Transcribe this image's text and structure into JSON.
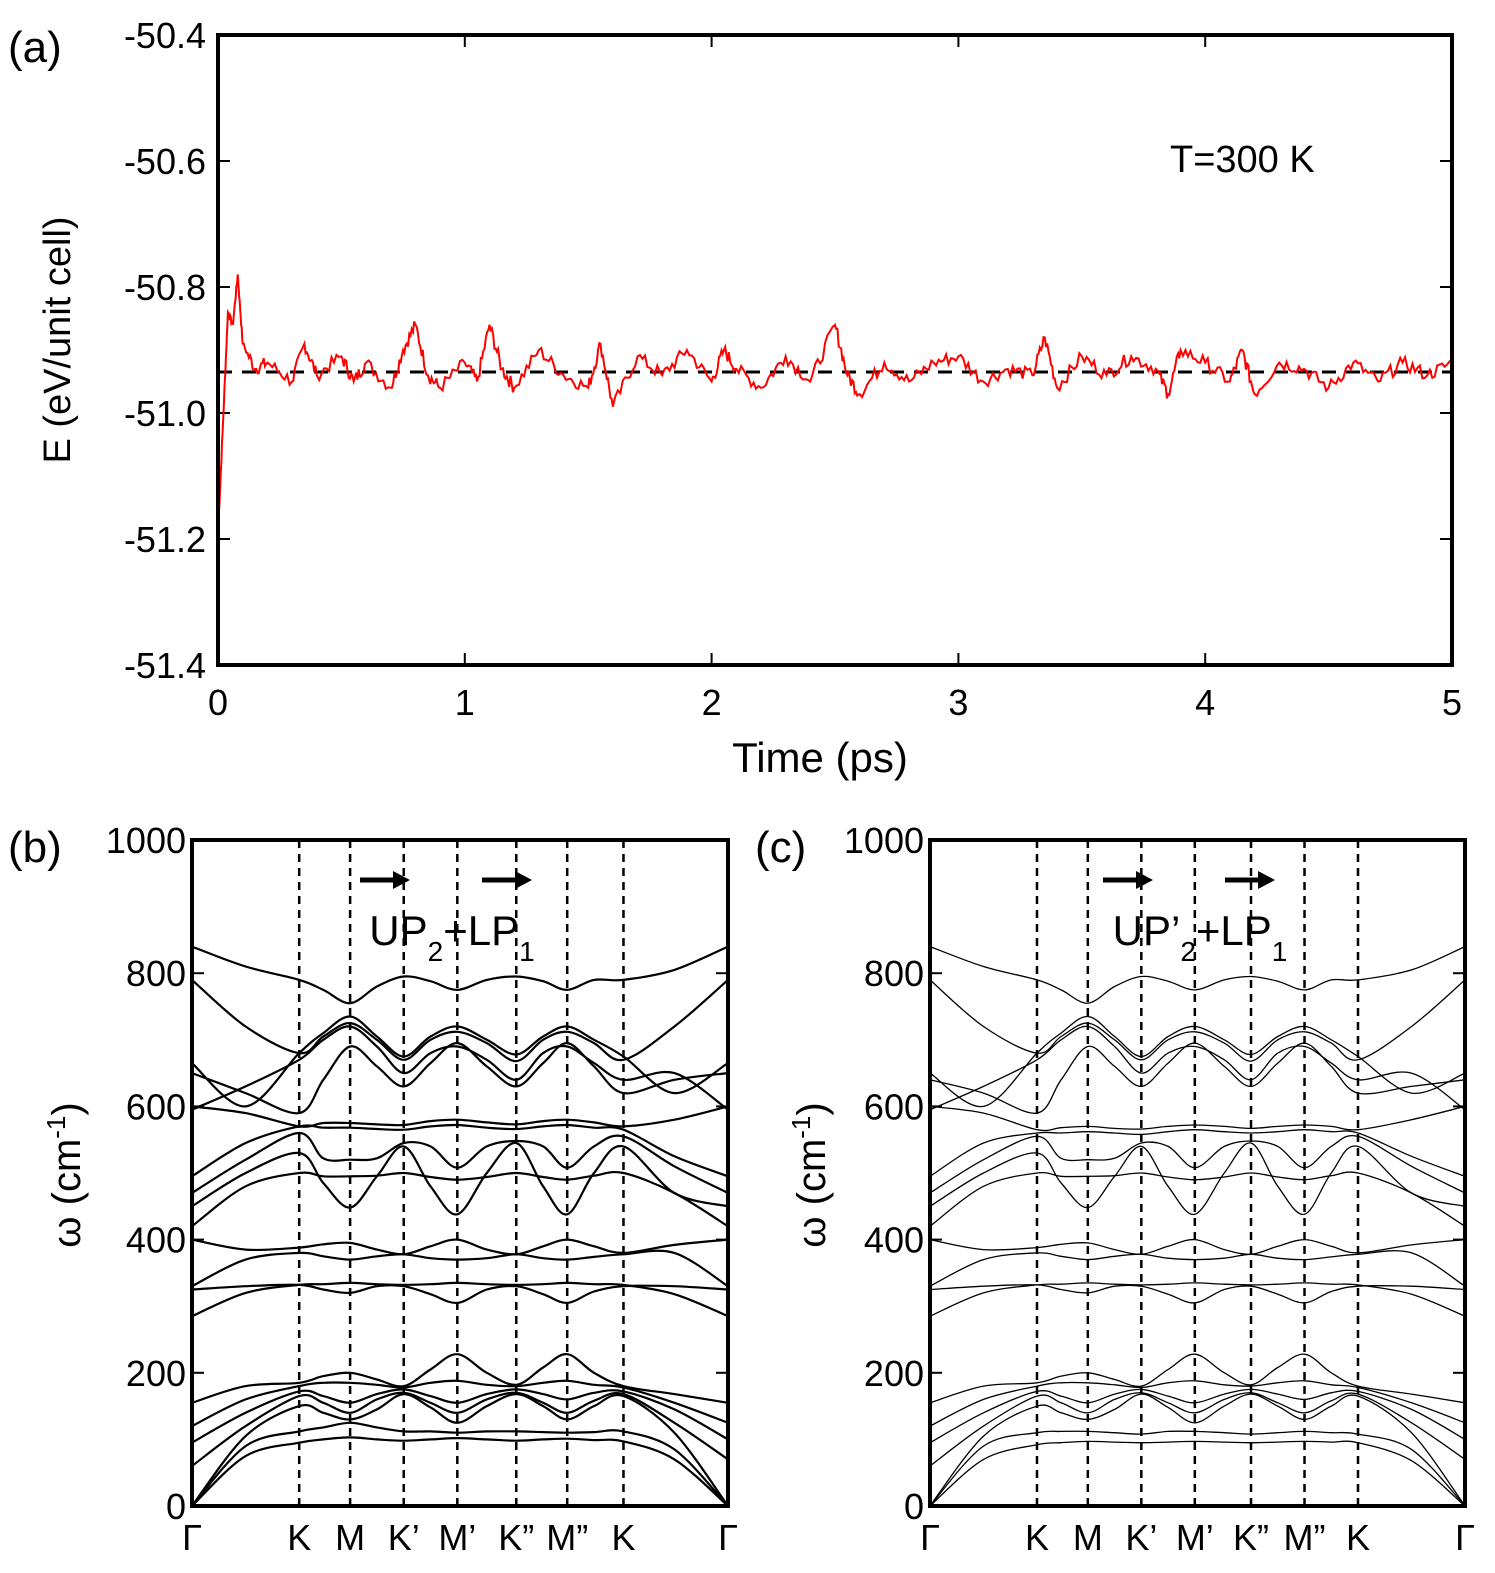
{
  "colors": {
    "md_line": "#ff0000",
    "axis": "#000000",
    "band": "#000000",
    "background": "#ffffff"
  },
  "chart_data": [
    {
      "panel": "(a)",
      "type": "line",
      "xlabel": "Time (ps)",
      "ylabel": "E (eV/unit cell)",
      "xlim": [
        0,
        5
      ],
      "ylim": [
        -51.4,
        -50.4
      ],
      "xticks": [
        0,
        1,
        2,
        3,
        4,
        5
      ],
      "yticks": [
        -50.4,
        -50.6,
        -50.8,
        -51.0,
        -51.2,
        -51.4
      ],
      "xtick_labels": [
        "0",
        "1",
        "2",
        "3",
        "4",
        "5"
      ],
      "ytick_labels": [
        "-50.4",
        "-50.6",
        "-50.8",
        "-51.0",
        "-51.2",
        "-51.4"
      ],
      "annotation": "T=300 K",
      "reference_line": {
        "y": -50.935,
        "style": "dashed"
      },
      "x": [
        0,
        0.02,
        0.04,
        0.06,
        0.08,
        0.1,
        0.15,
        0.2,
        0.3,
        0.35,
        0.4,
        0.5,
        0.55,
        0.6,
        0.7,
        0.75,
        0.8,
        0.85,
        0.9,
        1.0,
        1.05,
        1.1,
        1.15,
        1.2,
        1.3,
        1.4,
        1.5,
        1.55,
        1.6,
        1.7,
        1.8,
        1.9,
        2.0,
        2.05,
        2.1,
        2.2,
        2.3,
        2.4,
        2.5,
        2.55,
        2.6,
        2.7,
        2.8,
        2.9,
        3.0,
        3.1,
        3.2,
        3.3,
        3.35,
        3.4,
        3.5,
        3.6,
        3.7,
        3.8,
        3.85,
        3.9,
        4.0,
        4.1,
        4.15,
        4.2,
        4.3,
        4.4,
        4.5,
        4.6,
        4.7,
        4.8,
        4.9,
        5.0
      ],
      "y": [
        -51.19,
        -51.02,
        -50.84,
        -50.86,
        -50.78,
        -50.89,
        -50.93,
        -50.92,
        -50.95,
        -50.89,
        -50.94,
        -50.91,
        -50.95,
        -50.92,
        -50.96,
        -50.9,
        -50.86,
        -50.94,
        -50.96,
        -50.92,
        -50.95,
        -50.86,
        -50.93,
        -50.96,
        -50.9,
        -50.94,
        -50.96,
        -50.89,
        -50.99,
        -50.91,
        -50.94,
        -50.9,
        -50.95,
        -50.9,
        -50.93,
        -50.96,
        -50.91,
        -50.95,
        -50.86,
        -50.94,
        -50.97,
        -50.92,
        -50.95,
        -50.92,
        -50.91,
        -50.95,
        -50.93,
        -50.94,
        -50.88,
        -50.96,
        -50.91,
        -50.94,
        -50.91,
        -50.93,
        -50.97,
        -50.9,
        -50.92,
        -50.95,
        -50.9,
        -50.97,
        -50.92,
        -50.93,
        -50.96,
        -50.92,
        -50.95,
        -50.92,
        -50.94,
        -50.92
      ]
    },
    {
      "panel": "(b)",
      "type": "line",
      "title": "UP2+LP1",
      "ylabel": "ω (cm-1)",
      "ylim": [
        0,
        1000
      ],
      "yticks": [
        0,
        200,
        400,
        600,
        800,
        1000
      ],
      "ytick_labels": [
        "0",
        "200",
        "400",
        "600",
        "800",
        "1000"
      ],
      "kpath_labels": [
        "Γ",
        "K",
        "M",
        "K’",
        "M’",
        "K”",
        "M”",
        "K",
        "Γ"
      ],
      "kpath_positions": [
        0,
        0.2,
        0.295,
        0.395,
        0.495,
        0.605,
        0.7,
        0.805,
        1.0
      ],
      "x": [
        0,
        0.1,
        0.2,
        0.245,
        0.295,
        0.345,
        0.395,
        0.445,
        0.495,
        0.55,
        0.605,
        0.655,
        0.7,
        0.75,
        0.805,
        0.9,
        1.0
      ],
      "series": [
        {
          "values": [
            0,
            75,
            95,
            100,
            103,
            100,
            98,
            100,
            102,
            100,
            98,
            100,
            101,
            99,
            97,
            70,
            0
          ]
        },
        {
          "values": [
            0,
            90,
            112,
            118,
            125,
            118,
            112,
            112,
            110,
            112,
            112,
            111,
            110,
            111,
            112,
            85,
            0
          ]
        },
        {
          "values": [
            0,
            105,
            150,
            140,
            130,
            145,
            168,
            148,
            125,
            150,
            168,
            150,
            130,
            150,
            165,
            110,
            0
          ]
        },
        {
          "values": [
            60,
            120,
            165,
            155,
            140,
            160,
            170,
            155,
            140,
            160,
            170,
            155,
            140,
            158,
            168,
            125,
            70
          ]
        },
        {
          "values": [
            95,
            140,
            172,
            165,
            155,
            168,
            175,
            165,
            155,
            168,
            175,
            168,
            160,
            170,
            172,
            145,
            100
          ]
        },
        {
          "values": [
            120,
            160,
            180,
            185,
            185,
            182,
            178,
            185,
            188,
            182,
            180,
            185,
            188,
            182,
            178,
            155,
            125
          ]
        },
        {
          "values": [
            155,
            180,
            185,
            195,
            200,
            190,
            180,
            205,
            228,
            200,
            182,
            208,
            228,
            200,
            180,
            168,
            155
          ]
        },
        {
          "values": [
            285,
            320,
            332,
            333,
            335,
            333,
            332,
            333,
            335,
            333,
            332,
            333,
            335,
            333,
            332,
            318,
            285
          ]
        },
        {
          "values": [
            325,
            330,
            332,
            325,
            320,
            330,
            330,
            318,
            305,
            325,
            330,
            318,
            305,
            322,
            330,
            330,
            325
          ]
        },
        {
          "values": [
            330,
            370,
            380,
            375,
            370,
            375,
            378,
            372,
            370,
            372,
            378,
            372,
            370,
            374,
            378,
            380,
            330
          ]
        },
        {
          "values": [
            400,
            385,
            388,
            393,
            395,
            385,
            378,
            390,
            400,
            385,
            378,
            390,
            400,
            390,
            380,
            392,
            400
          ]
        },
        {
          "values": [
            420,
            480,
            500,
            495,
            495,
            496,
            500,
            494,
            490,
            494,
            500,
            494,
            490,
            496,
            500,
            470,
            420
          ]
        },
        {
          "values": [
            450,
            500,
            530,
            485,
            448,
            495,
            540,
            480,
            438,
            500,
            545,
            480,
            438,
            500,
            540,
            470,
            450
          ]
        },
        {
          "values": [
            470,
            520,
            560,
            522,
            520,
            522,
            545,
            540,
            508,
            540,
            548,
            540,
            508,
            540,
            555,
            510,
            470
          ]
        },
        {
          "values": [
            495,
            545,
            570,
            568,
            568,
            566,
            565,
            570,
            572,
            568,
            566,
            570,
            572,
            568,
            565,
            525,
            495
          ]
        },
        {
          "values": [
            600,
            590,
            570,
            575,
            575,
            573,
            572,
            578,
            580,
            576,
            573,
            578,
            580,
            576,
            570,
            580,
            600
          ]
        },
        {
          "values": [
            595,
            630,
            670,
            700,
            720,
            690,
            650,
            680,
            690,
            670,
            640,
            680,
            690,
            665,
            640,
            650,
            595
          ]
        },
        {
          "values": [
            650,
            620,
            590,
            640,
            690,
            660,
            630,
            665,
            695,
            660,
            630,
            665,
            695,
            660,
            620,
            640,
            650
          ]
        },
        {
          "values": [
            665,
            600,
            680,
            710,
            735,
            705,
            675,
            705,
            720,
            700,
            678,
            705,
            720,
            700,
            675,
            620,
            665
          ]
        },
        {
          "values": [
            790,
            720,
            680,
            705,
            725,
            700,
            670,
            700,
            712,
            695,
            668,
            700,
            712,
            695,
            670,
            720,
            790
          ]
        },
        {
          "values": [
            840,
            810,
            790,
            775,
            755,
            780,
            795,
            788,
            775,
            790,
            795,
            788,
            775,
            790,
            790,
            805,
            840
          ]
        }
      ]
    },
    {
      "panel": "(c)",
      "type": "line",
      "title": "UP’2+LP1",
      "ylabel": "ω (cm-1)",
      "ylim": [
        0,
        1000
      ],
      "yticks": [
        0,
        200,
        400,
        600,
        800,
        1000
      ],
      "ytick_labels": [
        "0",
        "200",
        "400",
        "600",
        "800",
        "1000"
      ],
      "kpath_labels": [
        "Γ",
        "K",
        "M",
        "K’",
        "M’",
        "K”",
        "M”",
        "K",
        "Γ"
      ],
      "kpath_positions": [
        0,
        0.2,
        0.295,
        0.395,
        0.495,
        0.6,
        0.7,
        0.8,
        1.0
      ],
      "x": [
        0,
        0.1,
        0.2,
        0.245,
        0.295,
        0.345,
        0.395,
        0.445,
        0.495,
        0.55,
        0.6,
        0.65,
        0.7,
        0.75,
        0.8,
        0.9,
        1.0
      ],
      "series": [
        {
          "values": [
            0,
            70,
            92,
            95,
            97,
            96,
            95,
            96,
            97,
            96,
            95,
            96,
            97,
            96,
            95,
            68,
            0
          ]
        },
        {
          "values": [
            0,
            90,
            110,
            112,
            112,
            110,
            108,
            112,
            112,
            110,
            108,
            110,
            112,
            110,
            108,
            85,
            0
          ]
        },
        {
          "values": [
            0,
            105,
            150,
            140,
            130,
            145,
            168,
            148,
            125,
            150,
            168,
            150,
            130,
            150,
            165,
            110,
            0
          ]
        },
        {
          "values": [
            60,
            120,
            165,
            155,
            140,
            160,
            170,
            155,
            140,
            160,
            170,
            155,
            140,
            158,
            168,
            125,
            70
          ]
        },
        {
          "values": [
            95,
            140,
            172,
            165,
            155,
            168,
            175,
            165,
            155,
            168,
            175,
            168,
            160,
            170,
            172,
            145,
            100
          ]
        },
        {
          "values": [
            120,
            160,
            180,
            185,
            185,
            182,
            178,
            185,
            188,
            182,
            180,
            185,
            188,
            182,
            178,
            155,
            125
          ]
        },
        {
          "values": [
            155,
            180,
            185,
            195,
            200,
            190,
            180,
            205,
            228,
            200,
            182,
            208,
            228,
            200,
            180,
            168,
            155
          ]
        },
        {
          "values": [
            285,
            320,
            332,
            333,
            335,
            333,
            332,
            333,
            335,
            333,
            332,
            333,
            335,
            333,
            332,
            318,
            285
          ]
        },
        {
          "values": [
            325,
            330,
            332,
            325,
            320,
            330,
            330,
            318,
            305,
            325,
            330,
            318,
            305,
            322,
            330,
            330,
            325
          ]
        },
        {
          "values": [
            330,
            370,
            380,
            375,
            370,
            375,
            378,
            372,
            370,
            372,
            378,
            372,
            370,
            374,
            378,
            380,
            330
          ]
        },
        {
          "values": [
            400,
            385,
            388,
            393,
            395,
            385,
            378,
            390,
            400,
            385,
            378,
            390,
            400,
            390,
            380,
            392,
            400
          ]
        },
        {
          "values": [
            420,
            480,
            500,
            495,
            495,
            496,
            500,
            494,
            490,
            494,
            500,
            494,
            490,
            496,
            500,
            470,
            420
          ]
        },
        {
          "values": [
            450,
            500,
            530,
            485,
            448,
            495,
            540,
            480,
            438,
            500,
            545,
            480,
            438,
            500,
            540,
            470,
            450
          ]
        },
        {
          "values": [
            470,
            520,
            555,
            522,
            520,
            522,
            545,
            540,
            508,
            540,
            548,
            540,
            508,
            540,
            555,
            510,
            470
          ]
        },
        {
          "values": [
            495,
            545,
            560,
            560,
            562,
            560,
            558,
            562,
            565,
            562,
            560,
            562,
            565,
            562,
            560,
            525,
            495
          ]
        },
        {
          "values": [
            600,
            590,
            565,
            568,
            570,
            567,
            566,
            570,
            572,
            570,
            567,
            570,
            572,
            570,
            565,
            580,
            600
          ]
        },
        {
          "values": [
            595,
            630,
            670,
            700,
            720,
            690,
            650,
            680,
            690,
            670,
            640,
            680,
            690,
            665,
            640,
            650,
            595
          ]
        },
        {
          "values": [
            640,
            620,
            590,
            640,
            690,
            660,
            630,
            665,
            695,
            660,
            630,
            665,
            695,
            660,
            620,
            630,
            640
          ]
        },
        {
          "values": [
            650,
            600,
            680,
            710,
            735,
            705,
            675,
            705,
            720,
            700,
            678,
            705,
            720,
            700,
            675,
            620,
            650
          ]
        },
        {
          "values": [
            790,
            720,
            680,
            705,
            725,
            700,
            670,
            700,
            712,
            695,
            668,
            700,
            712,
            695,
            670,
            720,
            790
          ]
        },
        {
          "values": [
            840,
            810,
            790,
            775,
            755,
            780,
            795,
            788,
            775,
            790,
            795,
            788,
            775,
            790,
            790,
            805,
            840
          ]
        }
      ]
    }
  ]
}
